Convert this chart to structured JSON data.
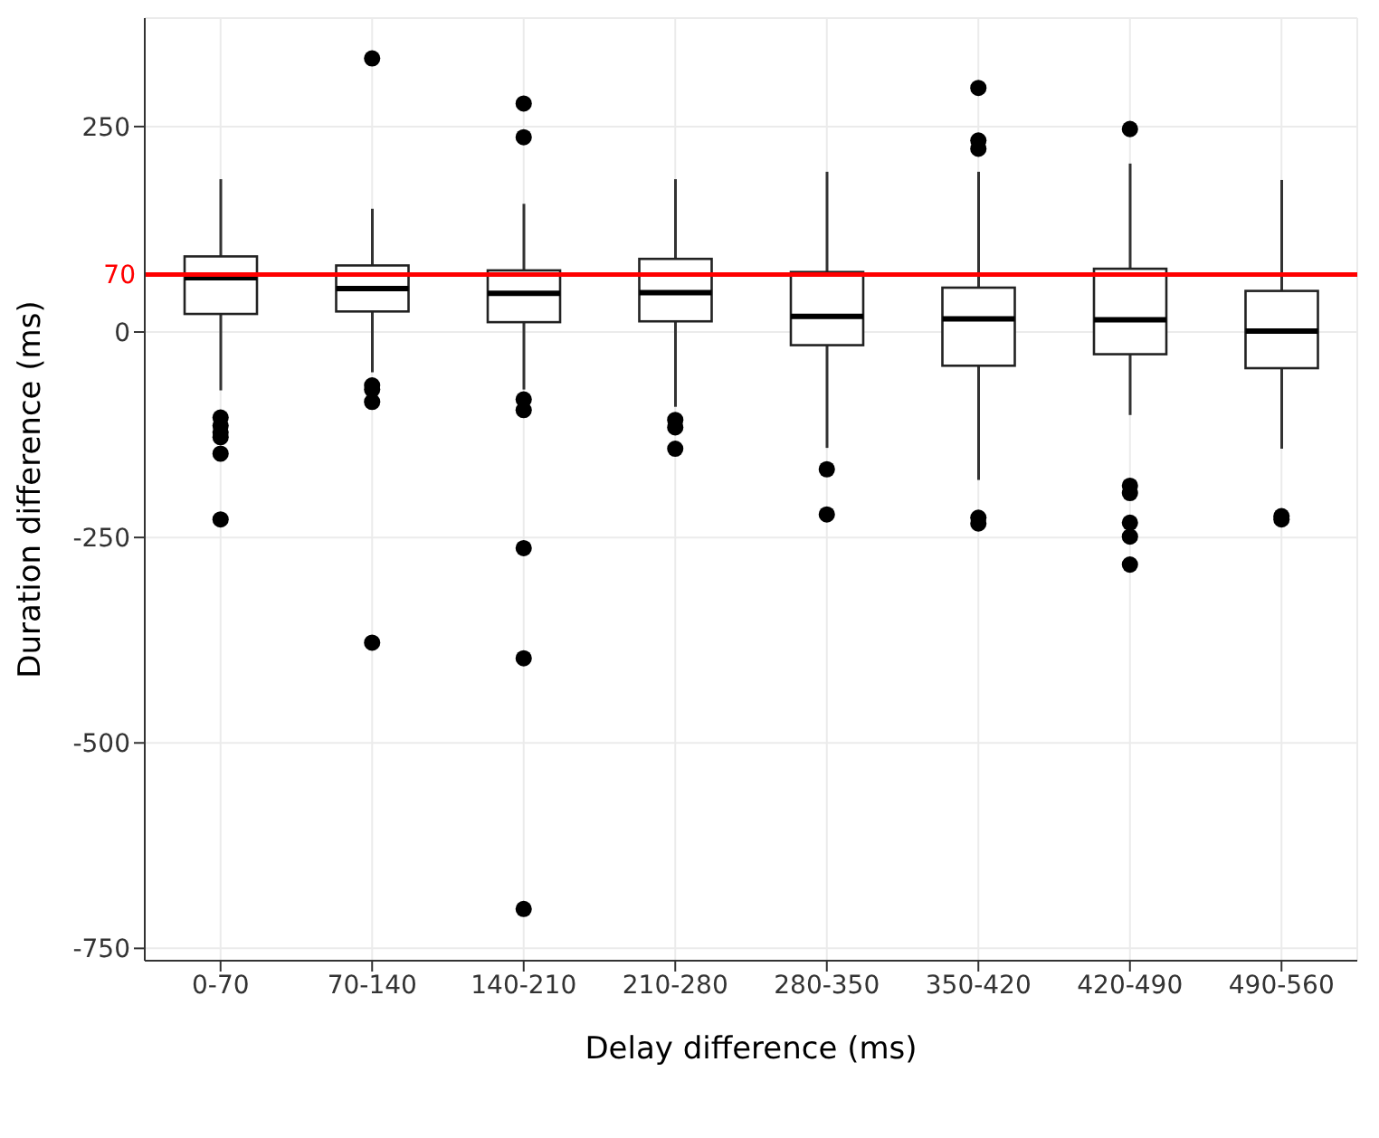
{
  "chart_data": {
    "type": "box",
    "xlabel": "Delay difference (ms)",
    "ylabel": "Duration difference (ms)",
    "categories": [
      "0-70",
      "70-140",
      "140-210",
      "210-280",
      "280-350",
      "350-420",
      "420-490",
      "490-560"
    ],
    "boxes": [
      {
        "low": -71,
        "q1": 22,
        "median": 66,
        "q3": 92,
        "high": 186,
        "outliers": [
          -104,
          -114,
          -122,
          -128,
          -148,
          -228
        ]
      },
      {
        "low": -49,
        "q1": 25,
        "median": 53,
        "q3": 81,
        "high": 150,
        "outliers": [
          333,
          -65,
          -70,
          -85,
          -378
        ]
      },
      {
        "low": -70,
        "q1": 12,
        "median": 47,
        "q3": 75,
        "high": 156,
        "outliers": [
          278,
          237,
          -82,
          -95,
          -263,
          -397,
          -702
        ]
      },
      {
        "low": -91,
        "q1": 13,
        "median": 48,
        "q3": 89,
        "high": 186,
        "outliers": [
          -107,
          -116,
          -142
        ]
      },
      {
        "low": -141,
        "q1": -16,
        "median": 19,
        "q3": 73,
        "high": 195,
        "outliers": [
          -167,
          -222
        ]
      },
      {
        "low": -180,
        "q1": -41,
        "median": 16,
        "q3": 54,
        "high": 195,
        "outliers": [
          297,
          233,
          223,
          -226,
          -233
        ]
      },
      {
        "low": -101,
        "q1": -27,
        "median": 15,
        "q3": 77,
        "high": 205,
        "outliers": [
          247,
          -187,
          -196,
          -232,
          -249,
          -283
        ]
      },
      {
        "low": -142,
        "q1": -44,
        "median": 1,
        "q3": 50,
        "high": 185,
        "outliers": [
          -224,
          -228
        ]
      }
    ],
    "ylim": [
      -765,
      382
    ],
    "yticks": [
      -750,
      -500,
      -250,
      0,
      250
    ],
    "grid": true,
    "ref_lines": [
      {
        "axis": "y",
        "value": 70,
        "label": "70",
        "color": "#ff0000"
      }
    ]
  }
}
